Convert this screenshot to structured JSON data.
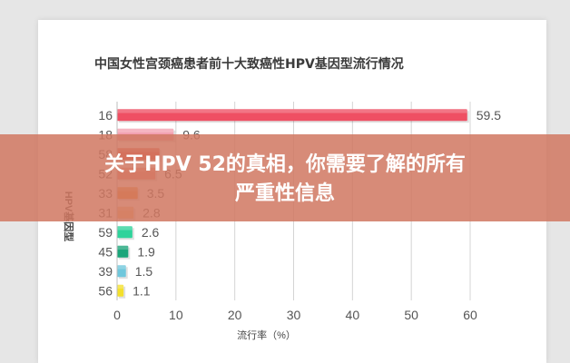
{
  "article": {
    "headline_line1": "关于HPV 52的真相，你需要了解的所有",
    "headline_line2": "严重性信息"
  },
  "chart_data": {
    "type": "bar",
    "orientation": "horizontal",
    "title": "中国女性宫颈癌患者前十大致癌性HPV基因型流行情况",
    "ylabel": "HPV基因型",
    "xlabel": "流行率（%）",
    "xlim": [
      0,
      60
    ],
    "xticks": [
      0,
      10,
      20,
      30,
      40,
      50,
      60
    ],
    "grid": true,
    "categories": [
      "16",
      "18",
      "58",
      "52",
      "33",
      "31",
      "59",
      "45",
      "39",
      "56"
    ],
    "values": [
      59.5,
      9.6,
      7.2,
      6.5,
      3.5,
      2.8,
      2.6,
      1.9,
      1.5,
      1.1
    ],
    "value_labels": [
      "59.5",
      "9.6",
      "",
      "6.5",
      "3.5",
      "2.8",
      "2.6",
      "1.9",
      "1.5",
      "1.1"
    ],
    "colors": [
      "#ef4f63",
      "#f2a0b0",
      "#e64a3c",
      "#f08a76",
      "#ee8a2a",
      "#f4b87a",
      "#2fd39b",
      "#1aa579",
      "#6fc7dc",
      "#f4e02c"
    ]
  }
}
